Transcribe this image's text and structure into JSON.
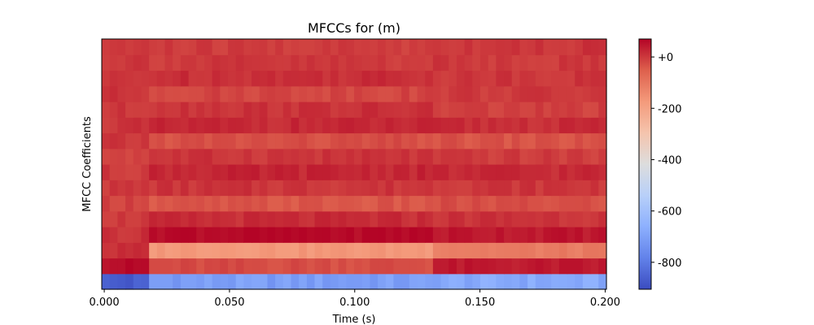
{
  "chart_data": {
    "type": "heatmap",
    "title": "MFCCs for (m)",
    "xlabel": "Time (s)",
    "ylabel": "MFCC Coefficients",
    "x_ticks": [
      {
        "value": 0.0,
        "label": "0.000"
      },
      {
        "value": 0.05,
        "label": "0.050"
      },
      {
        "value": 0.1,
        "label": "0.100"
      },
      {
        "value": 0.15,
        "label": "0.150"
      },
      {
        "value": 0.2,
        "label": "0.200"
      }
    ],
    "xlim": [
      -0.001,
      0.2005
    ],
    "n_coefficients": 16,
    "n_frames": 64,
    "colormap": "coolwarm",
    "colorbar": {
      "vmin": -905,
      "vmax": 70,
      "ticks": [
        {
          "value": 0,
          "label": "+0"
        },
        {
          "value": -200,
          "label": "-200"
        },
        {
          "value": -400,
          "label": "-400"
        },
        {
          "value": -600,
          "label": "-600"
        },
        {
          "value": -800,
          "label": "-800"
        }
      ]
    },
    "grid": false,
    "segments": [
      0.0,
      0.018,
      0.13,
      0.2
    ],
    "coefficient_levels": [
      [
        -870,
        -710,
        -680
      ],
      [
        60,
        -25,
        40
      ],
      [
        10,
        -170,
        -110
      ],
      [
        10,
        65,
        45
      ],
      [
        0,
        15,
        10
      ],
      [
        -10,
        -40,
        -30
      ],
      [
        0,
        5,
        5
      ],
      [
        0,
        25,
        20
      ],
      [
        -10,
        5,
        -5
      ],
      [
        0,
        -30,
        -35
      ],
      [
        5,
        20,
        15
      ],
      [
        0,
        10,
        -10
      ],
      [
        5,
        -15,
        0
      ],
      [
        0,
        15,
        5
      ],
      [
        5,
        0,
        0
      ],
      [
        0,
        -5,
        5
      ]
    ]
  }
}
